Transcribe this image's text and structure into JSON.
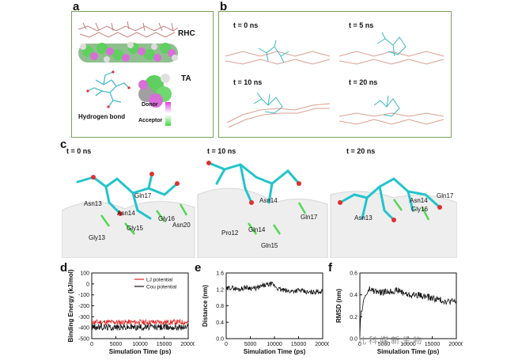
{
  "panel_labels": {
    "a": "a",
    "b": "b",
    "c": "c",
    "d": "d",
    "e": "e",
    "f": "f"
  },
  "panel_a": {
    "rhc_label": "RHC",
    "ta_label": "TA",
    "hbond_label": "Hydrogen bond",
    "donor_label": "Donor",
    "acceptor_label": "Acceptor",
    "colors": {
      "donor": "#e040e0",
      "acceptor": "#3cdc3c",
      "protein": "#c77d7d",
      "ligand": "#3bb7c9"
    }
  },
  "panel_b": {
    "times": [
      "t = 0 ns",
      "t = 5 ns",
      "t = 10 ns",
      "t = 20 ns"
    ]
  },
  "panel_c": {
    "times": [
      "t = 0 ns",
      "t = 10 ns",
      "t = 20 ns"
    ],
    "residues_0": [
      "Asn13",
      "Gln17",
      "Asn14",
      "Gly16",
      "Asn20",
      "Gly15",
      "Gly13"
    ],
    "residues_10": [
      "Asn14",
      "Gln17",
      "Pro12",
      "Gln14",
      "Gln15"
    ],
    "residues_20": [
      "Asn14",
      "Gln17",
      "Asn13",
      "Gly16"
    ]
  },
  "watermark": "儿 科 媒 新 生 物",
  "chart_data": [
    {
      "type": "line",
      "panel": "d",
      "xlabel": "Simulation Time (ps)",
      "ylabel": "Binding Energy (kJ/mol)",
      "xlim": [
        0,
        20000
      ],
      "ylim": [
        -500,
        100
      ],
      "xticks": [
        "0",
        "5000",
        "10000",
        "15000",
        "20000"
      ],
      "yticks": [
        "100",
        "0",
        "-100",
        "-200",
        "-300",
        "-400",
        "-500"
      ],
      "legend_position": "top-right",
      "series": [
        {
          "name": "LJ potential",
          "color": "#e02020",
          "mean": -350,
          "noise": 25
        },
        {
          "name": "Cou potential",
          "color": "#111111",
          "mean": -395,
          "noise": 30
        }
      ]
    },
    {
      "type": "line",
      "panel": "e",
      "xlabel": "Simulation Time (ps)",
      "ylabel": "Distance (nm)",
      "xlim": [
        0,
        20000
      ],
      "ylim": [
        0.0,
        1.6
      ],
      "xticks": [
        "0",
        "5000",
        "10000",
        "15000",
        "20000"
      ],
      "yticks": [
        "0.0",
        "0.4",
        "0.8",
        "1.2",
        "1.6"
      ],
      "series": [
        {
          "color": "#111111",
          "points": [
            [
              0,
              1.2
            ],
            [
              1000,
              1.25
            ],
            [
              2500,
              1.2
            ],
            [
              4000,
              1.25
            ],
            [
              6000,
              1.22
            ],
            [
              8000,
              1.3
            ],
            [
              9500,
              1.33
            ],
            [
              11000,
              1.2
            ],
            [
              13000,
              1.15
            ],
            [
              15000,
              1.18
            ],
            [
              17000,
              1.12
            ],
            [
              19000,
              1.15
            ],
            [
              20000,
              1.15
            ]
          ],
          "noise": 0.06
        }
      ]
    },
    {
      "type": "line",
      "panel": "f",
      "xlabel": "Simulation Time (ps)",
      "ylabel": "RMSD (nm)",
      "xlim": [
        0,
        20000
      ],
      "ylim": [
        0.0,
        0.6
      ],
      "xticks": [
        "0",
        "5000",
        "10000",
        "15000",
        "20000"
      ],
      "yticks": [
        "0.0",
        "0.2",
        "0.4",
        "0.6"
      ],
      "series": [
        {
          "color": "#111111",
          "points": [
            [
              0,
              0.05
            ],
            [
              300,
              0.25
            ],
            [
              1000,
              0.38
            ],
            [
              2000,
              0.45
            ],
            [
              4000,
              0.42
            ],
            [
              6000,
              0.43
            ],
            [
              8000,
              0.44
            ],
            [
              10000,
              0.4
            ],
            [
              12000,
              0.4
            ],
            [
              14000,
              0.38
            ],
            [
              16000,
              0.36
            ],
            [
              18000,
              0.34
            ],
            [
              20000,
              0.34
            ]
          ],
          "noise": 0.03
        }
      ]
    }
  ]
}
